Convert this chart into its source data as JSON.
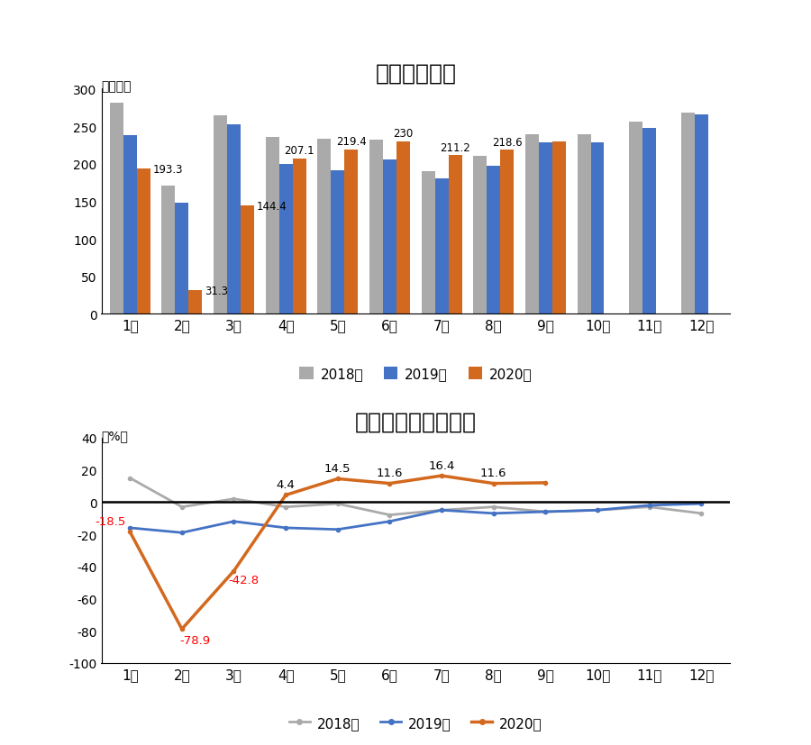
{
  "bar_title": "汽车月度销量",
  "line_title": "汽车月度销量增长率",
  "ylabel_bar": "（万辆）",
  "ylabel_line": "（%）",
  "months": [
    "1月",
    "2月",
    "3月",
    "4月",
    "5月",
    "6月",
    "7月",
    "8月",
    "9月",
    "10月",
    "11月",
    "12月"
  ],
  "bar_2018": [
    281,
    171,
    265,
    236,
    233,
    232,
    190,
    211,
    239,
    239,
    256,
    268
  ],
  "bar_2019": [
    238,
    148,
    253,
    200,
    191,
    206,
    180,
    197,
    228,
    228,
    248,
    266
  ],
  "bar_2020": [
    193.3,
    31.3,
    144.4,
    207.1,
    219.4,
    230.0,
    211.2,
    218.6,
    230.0,
    null,
    null,
    null
  ],
  "bar_color_2018": "#aaaaaa",
  "bar_color_2019": "#4472c4",
  "bar_color_2020": "#d2691e",
  "bar_labels_2020_val": [
    193.3,
    31.3,
    144.4,
    207.1,
    219.4,
    230,
    211.2,
    218.6
  ],
  "bar_labels_2020_idx": [
    0,
    1,
    2,
    3,
    4,
    5,
    6,
    7
  ],
  "ylim_bar": [
    0,
    300
  ],
  "yticks_bar": [
    0,
    50,
    100,
    150,
    200,
    250,
    300
  ],
  "line_2018": [
    15,
    -3,
    2,
    -3,
    -1,
    -8,
    -5,
    -3,
    -6,
    -5,
    -3,
    -7
  ],
  "line_2019": [
    -16,
    -19,
    -12,
    -16,
    -17,
    -12,
    -5,
    -7,
    -6,
    -5,
    -2,
    -1
  ],
  "line_2020": [
    -18.5,
    -78.9,
    -42.8,
    4.4,
    14.5,
    11.6,
    16.4,
    11.6,
    12.0,
    null,
    null,
    null
  ],
  "line_color_2018": "#aaaaaa",
  "line_color_2019": "#4472c4",
  "line_color_2020": "#d2691e",
  "ylim_line": [
    -100,
    40
  ],
  "yticks_line": [
    -100,
    -80,
    -60,
    -40,
    -20,
    0,
    20,
    40
  ],
  "line_labels_val": [
    -18.5,
    -78.9,
    -42.8,
    4.4,
    14.5,
    11.6,
    16.4,
    11.6
  ],
  "line_labels_idx": [
    0,
    1,
    2,
    3,
    4,
    5,
    6,
    7
  ],
  "legend_bar": [
    "2018年",
    "2019年",
    "2020年"
  ],
  "legend_line": [
    "2018年",
    "2019年",
    "2020年"
  ],
  "background_color": "#ffffff"
}
